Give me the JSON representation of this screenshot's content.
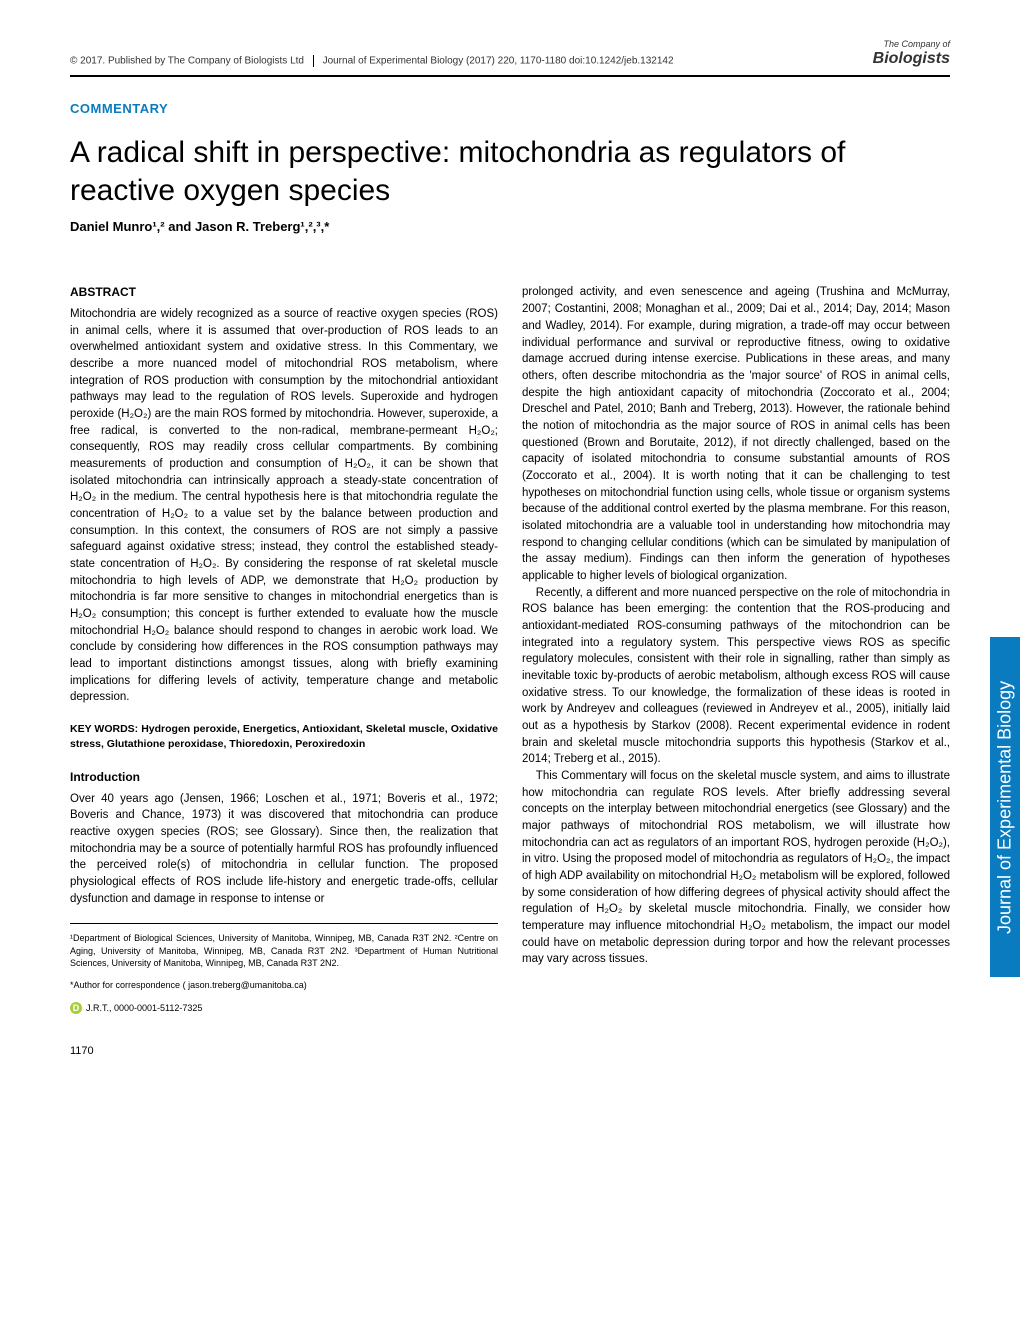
{
  "header": {
    "copyright": "© 2017. Published by The Company of Biologists Ltd",
    "journal": "Journal of Experimental Biology (2017) 220, 1170-1180 doi:10.1242/jeb.132142",
    "logo_top": "The Company of",
    "logo_bottom": "Biologists"
  },
  "section_label": "COMMENTARY",
  "title": "A radical shift in perspective: mitochondria as regulators of reactive oxygen species",
  "authors": "Daniel Munro¹,² and Jason R. Treberg¹,²,³,*",
  "abstract_heading": "ABSTRACT",
  "abstract": "Mitochondria are widely recognized as a source of reactive oxygen species (ROS) in animal cells, where it is assumed that over-production of ROS leads to an overwhelmed antioxidant system and oxidative stress. In this Commentary, we describe a more nuanced model of mitochondrial ROS metabolism, where integration of ROS production with consumption by the mitochondrial antioxidant pathways may lead to the regulation of ROS levels. Superoxide and hydrogen peroxide (H₂O₂) are the main ROS formed by mitochondria. However, superoxide, a free radical, is converted to the non-radical, membrane-permeant H₂O₂; consequently, ROS may readily cross cellular compartments. By combining measurements of production and consumption of H₂O₂, it can be shown that isolated mitochondria can intrinsically approach a steady-state concentration of H₂O₂ in the medium. The central hypothesis here is that mitochondria regulate the concentration of H₂O₂ to a value set by the balance between production and consumption. In this context, the consumers of ROS are not simply a passive safeguard against oxidative stress; instead, they control the established steady-state concentration of H₂O₂. By considering the response of rat skeletal muscle mitochondria to high levels of ADP, we demonstrate that H₂O₂ production by mitochondria is far more sensitive to changes in mitochondrial energetics than is H₂O₂ consumption; this concept is further extended to evaluate how the muscle mitochondrial H₂O₂ balance should respond to changes in aerobic work load. We conclude by considering how differences in the ROS consumption pathways may lead to important distinctions amongst tissues, along with briefly examining implications for differing levels of activity, temperature change and metabolic depression.",
  "keywords": "KEY WORDS: Hydrogen peroxide, Energetics, Antioxidant, Skeletal muscle, Oxidative stress, Glutathione peroxidase, Thioredoxin, Peroxiredoxin",
  "intro_heading": "Introduction",
  "intro_para1": "Over 40 years ago (Jensen, 1966; Loschen et al., 1971; Boveris et al., 1972; Boveris and Chance, 1973) it was discovered that mitochondria can produce reactive oxygen species (ROS; see Glossary). Since then, the realization that mitochondria may be a source of potentially harmful ROS has profoundly influenced the perceived role(s) of mitochondria in cellular function. The proposed physiological effects of ROS include life-history and energetic trade-offs, cellular dysfunction and damage in response to intense or",
  "col2_para1": "prolonged activity, and even senescence and ageing (Trushina and McMurray, 2007; Costantini, 2008; Monaghan et al., 2009; Dai et al., 2014; Day, 2014; Mason and Wadley, 2014). For example, during migration, a trade-off may occur between individual performance and survival or reproductive fitness, owing to oxidative damage accrued during intense exercise. Publications in these areas, and many others, often describe mitochondria as the 'major source' of ROS in animal cells, despite the high antioxidant capacity of mitochondria (Zoccorato et al., 2004; Dreschel and Patel, 2010; Banh and Treberg, 2013). However, the rationale behind the notion of mitochondria as the major source of ROS in animal cells has been questioned (Brown and Borutaite, 2012), if not directly challenged, based on the capacity of isolated mitochondria to consume substantial amounts of ROS (Zoccorato et al., 2004). It is worth noting that it can be challenging to test hypotheses on mitochondrial function using cells, whole tissue or organism systems because of the additional control exerted by the plasma membrane. For this reason, isolated mitochondria are a valuable tool in understanding how mitochondria may respond to changing cellular conditions (which can be simulated by manipulation of the assay medium). Findings can then inform the generation of hypotheses applicable to higher levels of biological organization.",
  "col2_para2": "Recently, a different and more nuanced perspective on the role of mitochondria in ROS balance has been emerging: the contention that the ROS-producing and antioxidant-mediated ROS-consuming pathways of the mitochondrion can be integrated into a regulatory system. This perspective views ROS as specific regulatory molecules, consistent with their role in signalling, rather than simply as inevitable toxic by-products of aerobic metabolism, although excess ROS will cause oxidative stress. To our knowledge, the formalization of these ideas is rooted in work by Andreyev and colleagues (reviewed in Andreyev et al., 2005), initially laid out as a hypothesis by Starkov (2008). Recent experimental evidence in rodent brain and skeletal muscle mitochondria supports this hypothesis (Starkov et al., 2014; Treberg et al., 2015).",
  "col2_para3": "This Commentary will focus on the skeletal muscle system, and aims to illustrate how mitochondria can regulate ROS levels. After briefly addressing several concepts on the interplay between mitochondrial energetics (see Glossary) and the major pathways of mitochondrial ROS metabolism, we will illustrate how mitochondria can act as regulators of an important ROS, hydrogen peroxide (H₂O₂), in vitro. Using the proposed model of mitochondria as regulators of H₂O₂, the impact of high ADP availability on mitochondrial H₂O₂ metabolism will be explored, followed by some consideration of how differing degrees of physical activity should affect the regulation of H₂O₂ by skeletal muscle mitochondria. Finally, we consider how temperature may influence mitochondrial H₂O₂ metabolism, the impact our model could have on metabolic depression during torpor and how the relevant processes may vary across tissues.",
  "affiliations": "¹Department of Biological Sciences, University of Manitoba, Winnipeg, MB, Canada R3T 2N2. ²Centre on Aging, University of Manitoba, Winnipeg, MB, Canada R3T 2N2. ³Department of Human Nutritional Sciences, University of Manitoba, Winnipeg, MB, Canada R3T 2N2.",
  "correspondence": "*Author for correspondence ( jason.treberg@umanitoba.ca)",
  "orcid": "J.R.T., 0000-0001-5112-7325",
  "page_number": "1170",
  "side_tab": "Journal of Experimental Biology",
  "colors": {
    "accent": "#0b7bbf",
    "orcid_green": "#a6ce39",
    "text": "#000000",
    "bg": "#ffffff"
  }
}
